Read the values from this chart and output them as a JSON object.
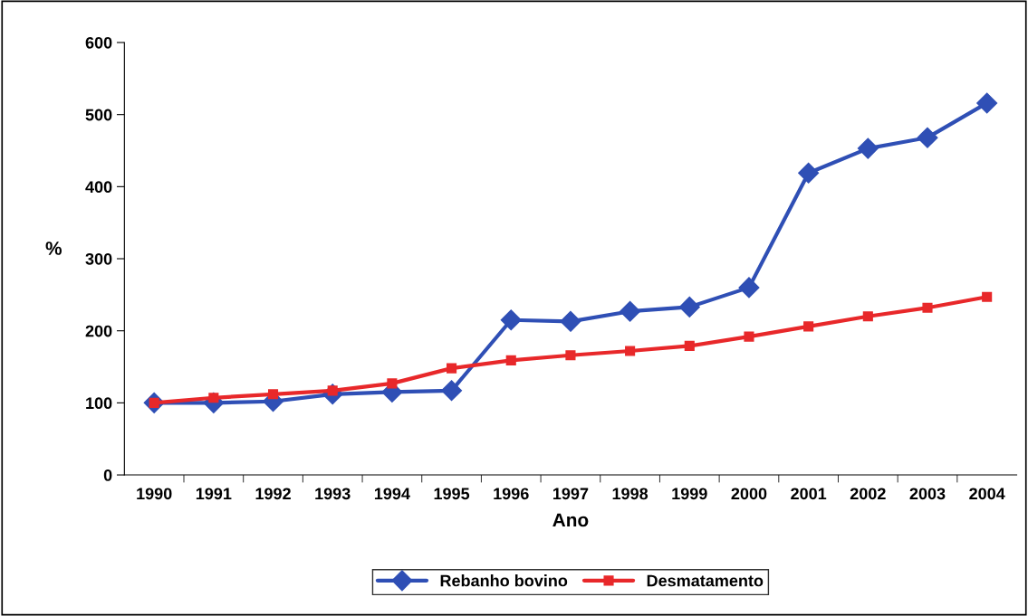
{
  "chart_data": {
    "type": "line",
    "xlabel": "Ano",
    "ylabel": "%",
    "categories": [
      "1990",
      "1991",
      "1992",
      "1993",
      "1994",
      "1995",
      "1996",
      "1997",
      "1998",
      "1999",
      "2000",
      "2001",
      "2002",
      "2003",
      "2004"
    ],
    "series": [
      {
        "name": "Rebanho bovino",
        "color": "#2f4fb5",
        "marker": "diamond",
        "values": [
          100,
          100,
          102,
          112,
          115,
          117,
          215,
          213,
          227,
          233,
          260,
          419,
          453,
          468,
          516
        ]
      },
      {
        "name": "Desmatamento",
        "color": "#e8282a",
        "marker": "square",
        "values": [
          100,
          107,
          112,
          117,
          127,
          148,
          159,
          166,
          172,
          179,
          192,
          206,
          220,
          232,
          247
        ]
      }
    ],
    "ylim": [
      0,
      600
    ],
    "yticks": [
      0,
      100,
      200,
      300,
      400,
      500,
      600
    ],
    "grid": false,
    "legend": "bottom",
    "line_style": "solid"
  }
}
